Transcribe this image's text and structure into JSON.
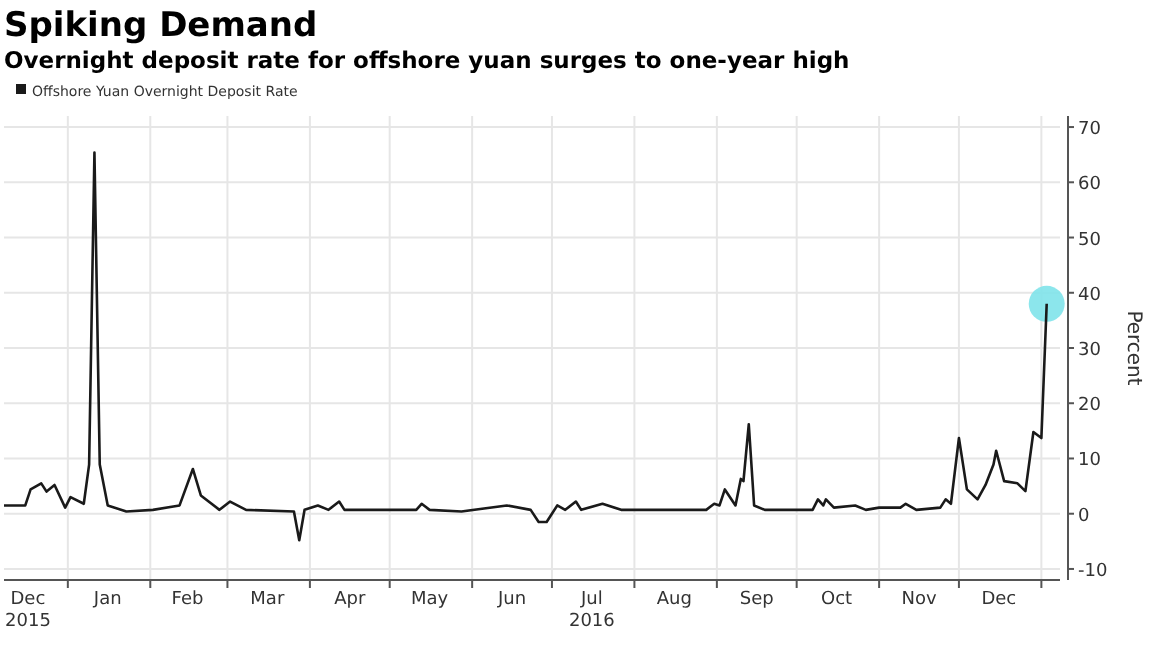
{
  "chart_data": {
    "type": "line",
    "title": "Spiking Demand",
    "subtitle": "Overnight deposit rate for offshore yuan surges to one-year high",
    "ylabel": "Percent",
    "x": [
      "2015-12-08",
      "2015-12-16",
      "2015-12-18",
      "2015-12-22",
      "2015-12-24",
      "2015-12-27",
      "2015-12-31",
      "2016-01-02",
      "2016-01-07",
      "2016-01-09",
      "2016-01-11",
      "2016-01-13",
      "2016-01-16",
      "2016-01-23",
      "2016-02-02",
      "2016-02-12",
      "2016-02-17",
      "2016-02-20",
      "2016-02-27",
      "2016-03-02",
      "2016-03-08",
      "2016-03-26",
      "2016-03-28",
      "2016-03-30",
      "2016-04-04",
      "2016-04-08",
      "2016-04-12",
      "2016-04-14",
      "2016-05-11",
      "2016-05-13",
      "2016-05-16",
      "2016-05-28",
      "2016-06-14",
      "2016-06-23",
      "2016-06-26",
      "2016-06-29",
      "2016-07-03",
      "2016-07-06",
      "2016-07-10",
      "2016-07-12",
      "2016-07-20",
      "2016-07-27",
      "2016-08-28",
      "2016-08-31",
      "2016-09-02",
      "2016-09-04",
      "2016-09-08",
      "2016-09-10",
      "2016-09-11",
      "2016-09-13",
      "2016-09-15",
      "2016-09-19",
      "2016-10-07",
      "2016-10-09",
      "2016-10-11",
      "2016-10-12",
      "2016-10-15",
      "2016-10-23",
      "2016-10-27",
      "2016-11-01",
      "2016-11-09",
      "2016-11-11",
      "2016-11-15",
      "2016-11-24",
      "2016-11-26",
      "2016-11-28",
      "2016-12-01",
      "2016-12-04",
      "2016-12-08",
      "2016-12-11",
      "2016-12-14",
      "2016-12-15",
      "2016-12-18",
      "2016-12-23",
      "2016-12-26",
      "2016-12-29",
      "2017-01-01",
      "2017-01-03"
    ],
    "series": [
      {
        "name": "Offshore Yuan Overnight Deposit Rate",
        "color": "#1a1a1a",
        "values": [
          1.5,
          1.5,
          4.4,
          5.5,
          4,
          5.2,
          1.1,
          3,
          1.8,
          8.9,
          65.4,
          8.9,
          1.5,
          0.4,
          0.7,
          1.5,
          8.1,
          3.3,
          0.7,
          2.2,
          0.7,
          0.4,
          -4.8,
          0.7,
          1.5,
          0.7,
          2.2,
          0.7,
          0.7,
          1.8,
          0.7,
          0.4,
          1.5,
          0.7,
          -1.5,
          -1.5,
          1.5,
          0.7,
          2.2,
          0.7,
          1.8,
          0.7,
          0.7,
          1.8,
          1.5,
          4.4,
          1.5,
          6.3,
          5.9,
          16.2,
          1.5,
          0.7,
          0.7,
          2.6,
          1.5,
          2.6,
          1.1,
          1.5,
          0.7,
          1.1,
          1.1,
          1.8,
          0.7,
          1.1,
          2.6,
          1.8,
          13.7,
          4.4,
          2.6,
          5.2,
          8.9,
          11.4,
          5.9,
          5.5,
          4.1,
          14.8,
          13.7,
          38
        ]
      },
      {
        "type": "scatter",
        "marker": "circle",
        "color": "#7fe3ea",
        "x": [
          "2017-01-03"
        ],
        "values": [
          38
        ]
      }
    ],
    "xlim": [
      "2015-12-08",
      "2017-01-08"
    ],
    "xticks": [
      {
        "value": "2015-12-17",
        "label": "Dec\n2015"
      },
      {
        "value": "2016-01-01",
        "label": null
      },
      {
        "value": "2016-01-16",
        "label": "Jan"
      },
      {
        "value": "2016-02-01",
        "label": null
      },
      {
        "value": "2016-02-15",
        "label": "Feb"
      },
      {
        "value": "2016-03-01",
        "label": null
      },
      {
        "value": "2016-03-16",
        "label": "Mar"
      },
      {
        "value": "2016-04-01",
        "label": null
      },
      {
        "value": "2016-04-16",
        "label": "Apr"
      },
      {
        "value": "2016-05-01",
        "label": null
      },
      {
        "value": "2016-05-16",
        "label": "May"
      },
      {
        "value": "2016-06-01",
        "label": null
      },
      {
        "value": "2016-06-16",
        "label": "Jun"
      },
      {
        "value": "2016-07-01",
        "label": null
      },
      {
        "value": "2016-07-16",
        "label": "Jul\n2016"
      },
      {
        "value": "2016-08-01",
        "label": null
      },
      {
        "value": "2016-08-16",
        "label": "Aug"
      },
      {
        "value": "2016-09-01",
        "label": null
      },
      {
        "value": "2016-09-16",
        "label": "Sep"
      },
      {
        "value": "2016-10-01",
        "label": null
      },
      {
        "value": "2016-10-16",
        "label": "Oct"
      },
      {
        "value": "2016-11-01",
        "label": null
      },
      {
        "value": "2016-11-16",
        "label": "Nov"
      },
      {
        "value": "2016-12-01",
        "label": null
      },
      {
        "value": "2016-12-16",
        "label": "Dec"
      },
      {
        "value": "2017-01-01",
        "label": null
      }
    ],
    "ylim": [
      -12,
      72
    ],
    "yticks": [
      -10,
      0,
      10,
      20,
      30,
      40,
      50,
      60,
      70
    ],
    "grid": true,
    "legend": "top left",
    "line_style": "solid"
  }
}
